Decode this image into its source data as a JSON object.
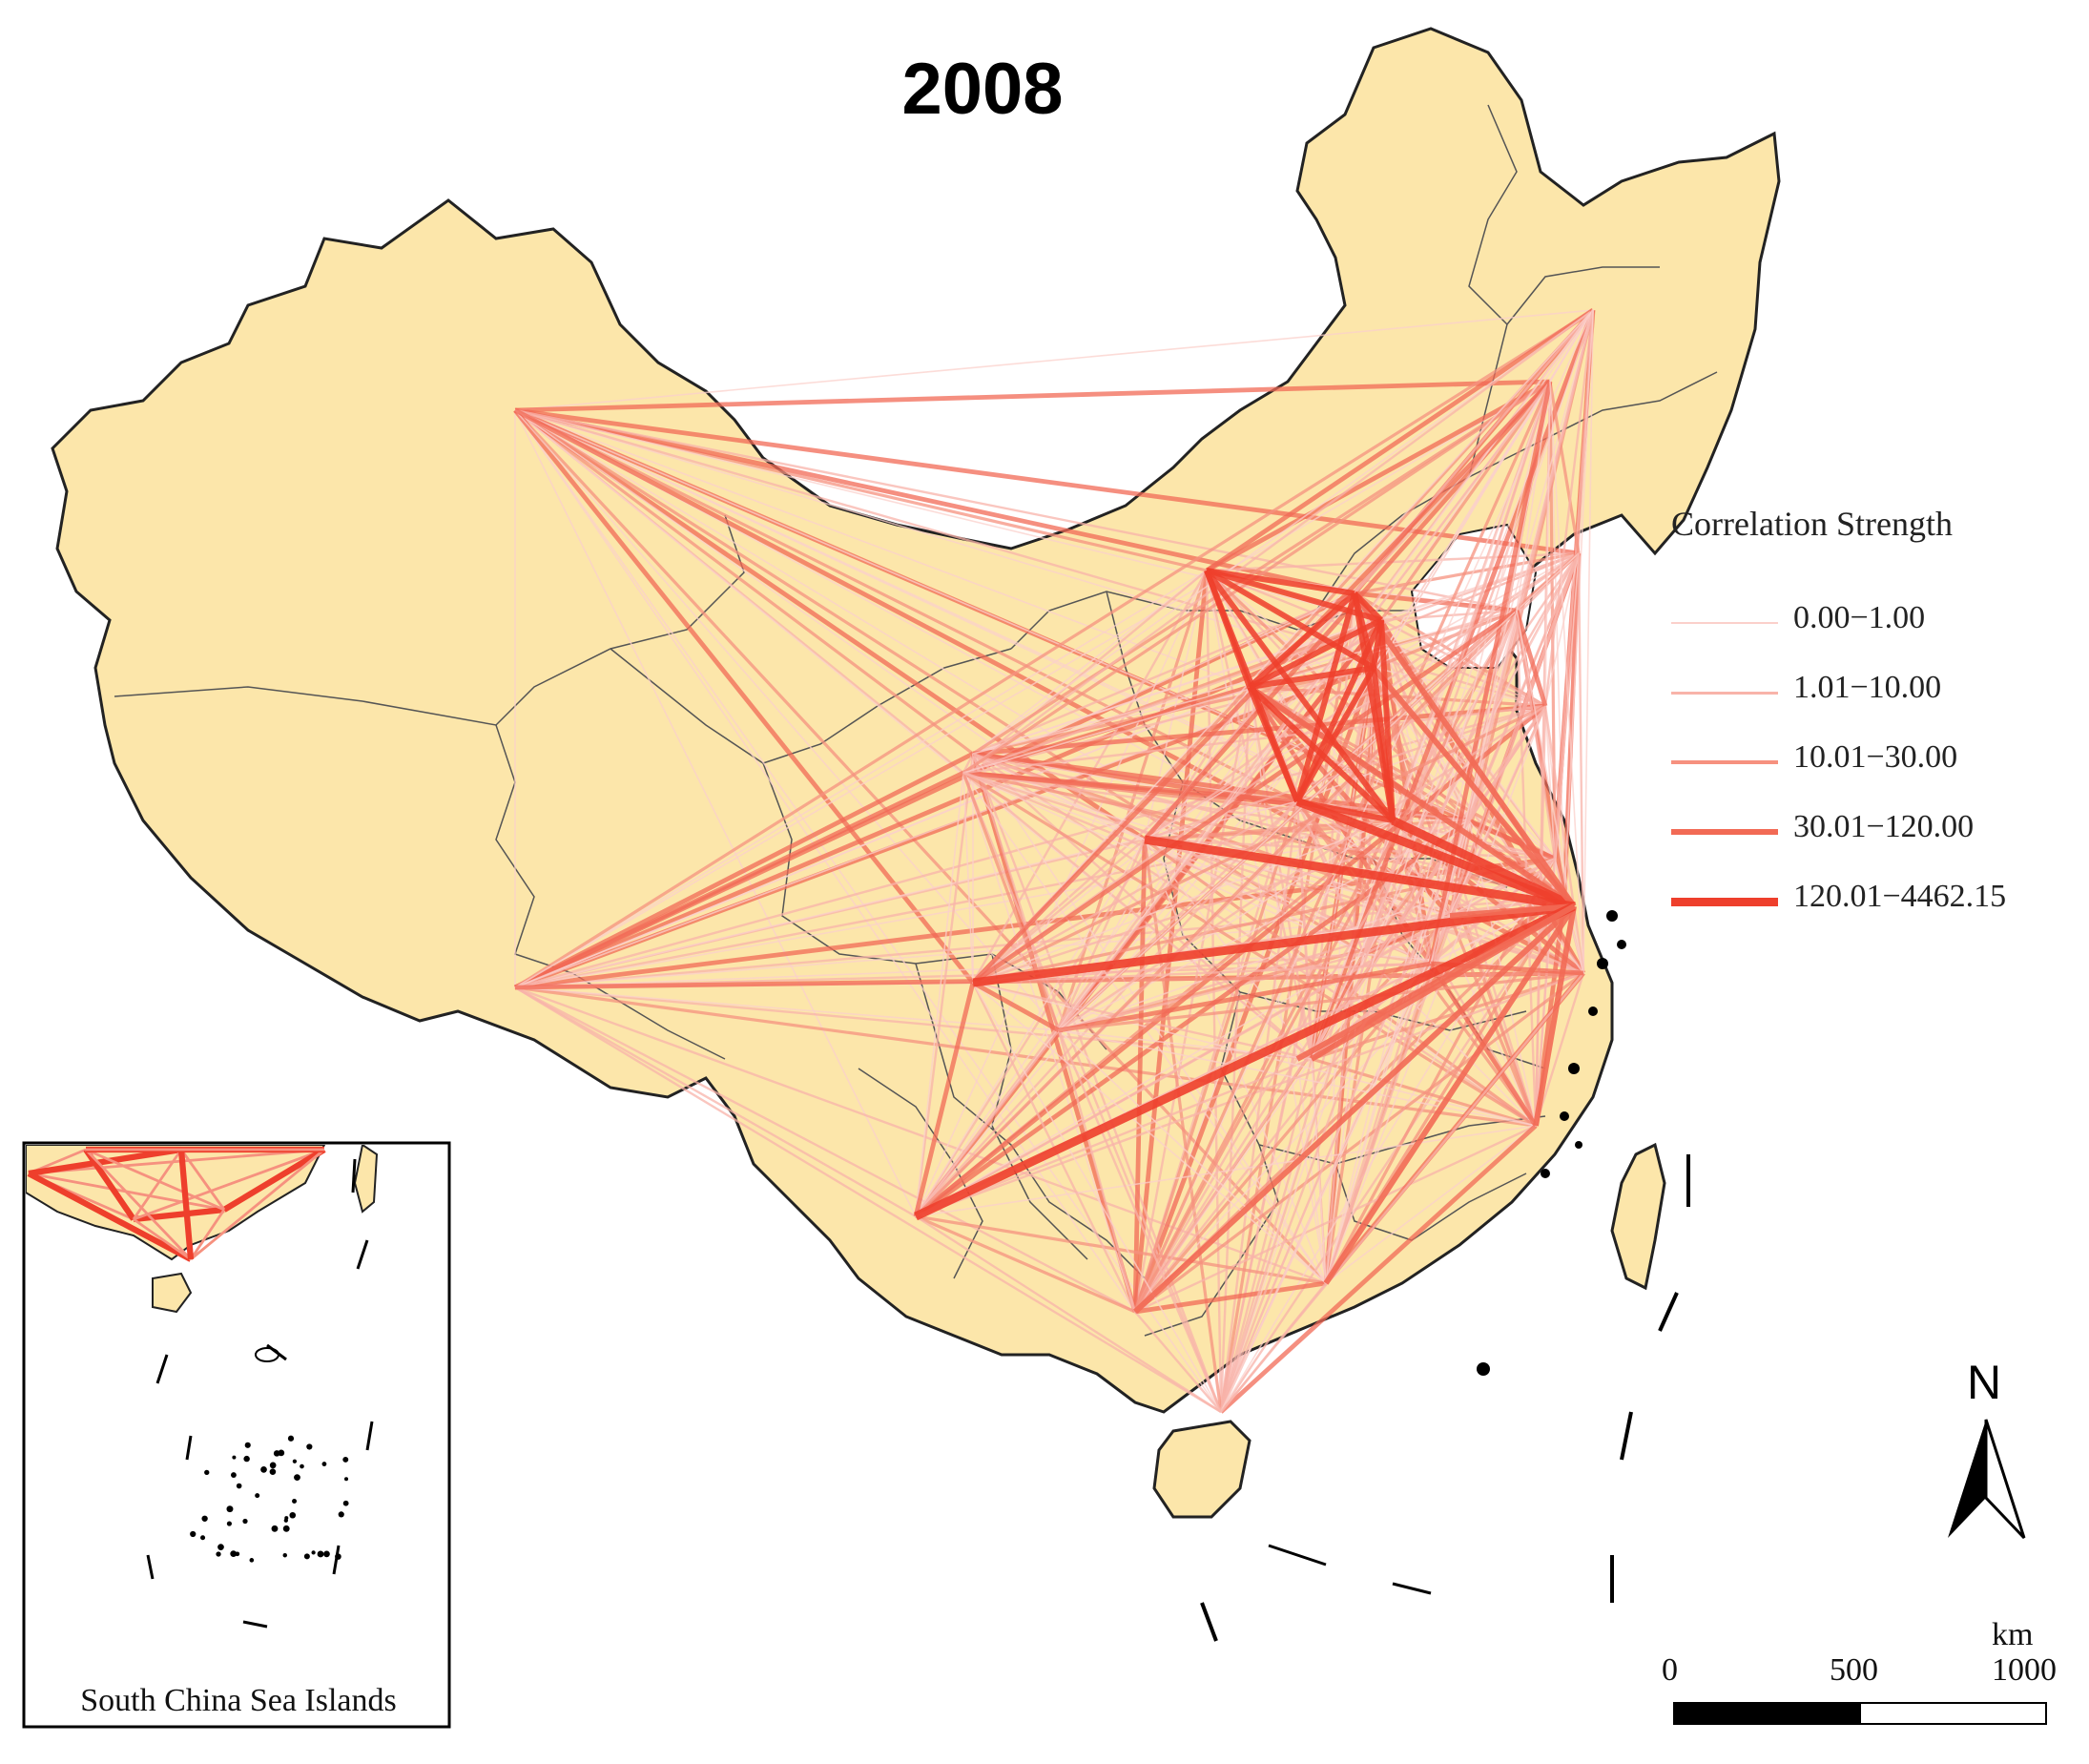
{
  "map": {
    "title": "2008",
    "base_fill": "#fce6aa",
    "border_color": "#222222",
    "province_line_color": "#555555",
    "link_color": "#f0432f"
  },
  "legend": {
    "title": "Correlation Strength",
    "classes": [
      {
        "label": "0.00−1.00",
        "color": "#fbd0cb",
        "stroke": 2
      },
      {
        "label": "1.01−10.00",
        "color": "#f8b3a9",
        "stroke": 3
      },
      {
        "label": "10.01−30.00",
        "color": "#f6917f",
        "stroke": 4
      },
      {
        "label": "30.01−120.00",
        "color": "#f26a55",
        "stroke": 6
      },
      {
        "label": "120.01−4462.15",
        "color": "#ee3f2c",
        "stroke": 9
      }
    ]
  },
  "inset": {
    "caption": "South China Sea Islands"
  },
  "scale_bar": {
    "unit": "km",
    "ticks": [
      "0",
      "500",
      "1000"
    ]
  },
  "north_arrow": {
    "label": "N"
  }
}
